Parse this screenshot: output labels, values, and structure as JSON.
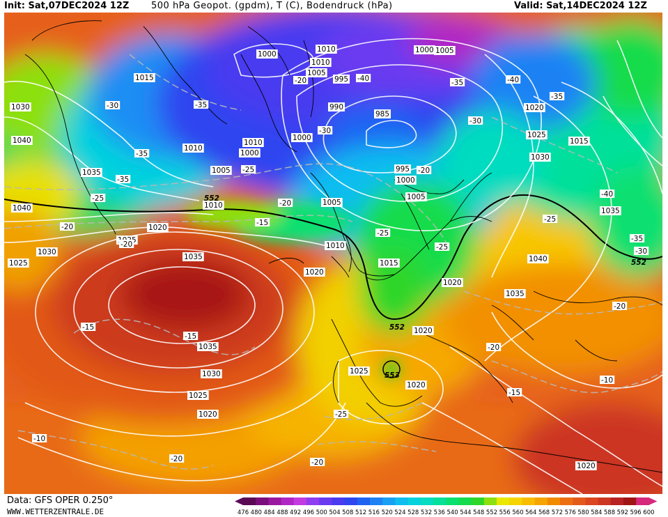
{
  "header": {
    "init": "Init: Sat,07DEC2024 12Z",
    "title": "500 hPa Geopot. (gpdm), T (C), Bodendruck (hPa)",
    "valid": "Valid: Sat,14DEC2024 12Z"
  },
  "footer": {
    "data_source": "Data: GFS OPER 0.250°",
    "website": "WWW.WETTERZENTRALE.DE"
  },
  "legend": {
    "ticks": [
      "476",
      "480",
      "484",
      "488",
      "492",
      "496",
      "500",
      "504",
      "508",
      "512",
      "516",
      "520",
      "524",
      "528",
      "532",
      "536",
      "540",
      "544",
      "548",
      "552",
      "556",
      "560",
      "564",
      "568",
      "572",
      "576",
      "580",
      "584",
      "588",
      "592",
      "596",
      "600"
    ],
    "colors": [
      "#5a0a55",
      "#7a0e7a",
      "#9a18a0",
      "#b026c4",
      "#c23ae0",
      "#8f3df0",
      "#6a3af0",
      "#4a3af0",
      "#2f45f0",
      "#1f63f2",
      "#1f82f4",
      "#18a0f4",
      "#0fbdf0",
      "#06d2de",
      "#06dcc0",
      "#06e09a",
      "#0ae070",
      "#14dc4c",
      "#2ed62a",
      "#8ce010",
      "#e8e800",
      "#f6d400",
      "#f8bc00",
      "#f6a400",
      "#f28a00",
      "#ec6e10",
      "#e45a1a",
      "#dc4620",
      "#cc3622",
      "#b82222",
      "#a01414",
      "#d6287c"
    ]
  },
  "map": {
    "pressure_labels": [
      "1015",
      "1010",
      "1005",
      "1010",
      "1000",
      "1000",
      "1005",
      "1010",
      "1010",
      "1010",
      "1005",
      "995",
      "990",
      "985",
      "1000",
      "1005",
      "1020",
      "1025",
      "1030",
      "1035",
      "1040",
      "1035",
      "1040",
      "1030",
      "1025",
      "1020",
      "1025",
      "1015",
      "1000",
      "995",
      "1000",
      "1005",
      "1010",
      "1015",
      "1020",
      "1030",
      "1035",
      "1040",
      "1035",
      "1035",
      "1030",
      "1025",
      "1020",
      "1020",
      "1025",
      "1020",
      "1020",
      "1015",
      "1035",
      "1030",
      "1025",
      "1020",
      "1020",
      "1020",
      "1025"
    ],
    "temperature_labels": [
      "-30",
      "-35",
      "-35",
      "-40",
      "-35",
      "-40",
      "-35",
      "-30",
      "-35",
      "-30",
      "-25",
      "-25",
      "-25",
      "-20",
      "-20",
      "-15",
      "-15",
      "-15",
      "-25",
      "-20",
      "-25",
      "-25",
      "-20",
      "-20",
      "-15",
      "-10",
      "-10",
      "-20",
      "-20",
      "-35",
      "-30",
      "-40",
      "-20",
      "-20",
      "-25",
      "-25"
    ],
    "height_labels": [
      "552",
      "552",
      "552",
      "553",
      "552"
    ]
  }
}
